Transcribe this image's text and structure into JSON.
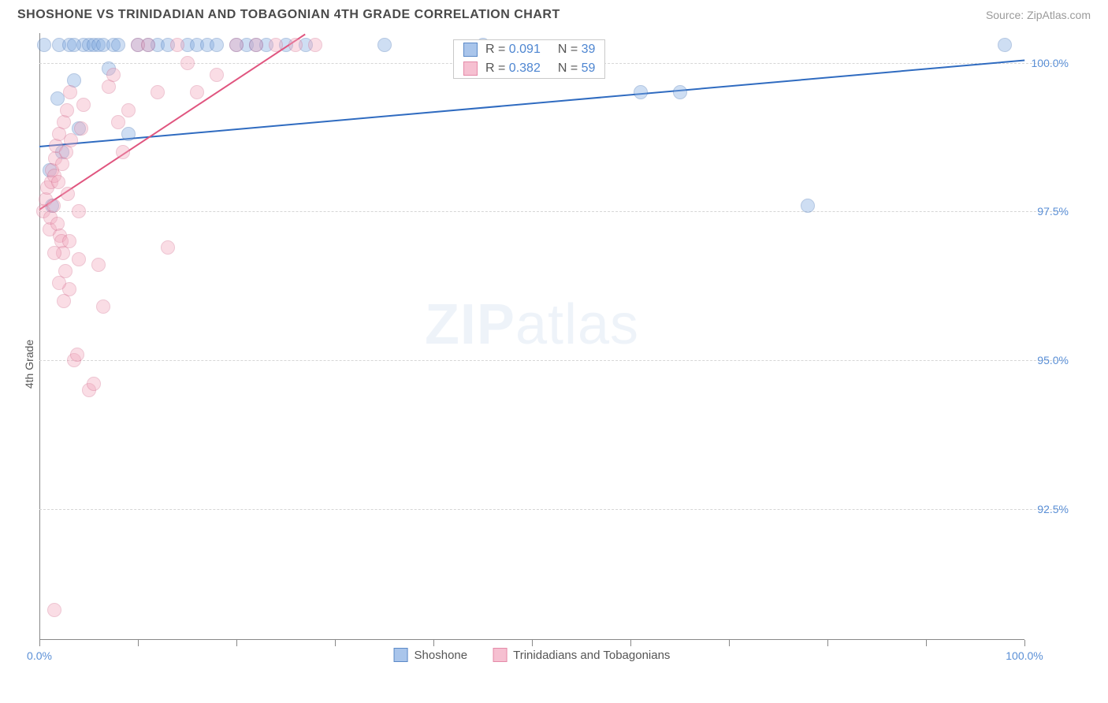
{
  "header": {
    "title": "SHOSHONE VS TRINIDADIAN AND TOBAGONIAN 4TH GRADE CORRELATION CHART",
    "source_prefix": "Source: ",
    "source_name": "ZipAtlas.com"
  },
  "watermark": {
    "zip": "ZIP",
    "atlas": "atlas"
  },
  "chart": {
    "type": "scatter",
    "y_axis_label": "4th Grade",
    "background_color": "#ffffff",
    "grid_color": "#d6d6d6",
    "axis_color": "#888888",
    "tick_label_color": "#5a8fd6",
    "xlim": [
      0,
      100
    ],
    "ylim": [
      90.3,
      100.5
    ],
    "x_ticks": [
      0,
      10,
      20,
      30,
      40,
      50,
      60,
      70,
      80,
      90,
      100
    ],
    "x_tick_labels": [
      {
        "x": 0,
        "label": "0.0%"
      },
      {
        "x": 100,
        "label": "100.0%"
      }
    ],
    "y_gridlines": [
      92.5,
      95.0,
      97.5,
      100.0
    ],
    "y_tick_labels": [
      {
        "y": 92.5,
        "label": "92.5%"
      },
      {
        "y": 95.0,
        "label": "95.0%"
      },
      {
        "y": 97.5,
        "label": "97.5%"
      },
      {
        "y": 100.0,
        "label": "100.0%"
      }
    ],
    "marker_radius": 9,
    "marker_opacity": 0.38,
    "series": [
      {
        "name": "Shoshone",
        "fill_color": "#7fa9e0",
        "stroke_color": "#3d6fb5",
        "legend_fill": "#a9c5eb",
        "legend_stroke": "#5b89c7",
        "trend": {
          "x1": 0,
          "y1": 98.6,
          "x2": 100,
          "y2": 100.05,
          "color": "#2f6bc0",
          "width": 2
        },
        "stats": {
          "R": "0.091",
          "N": "39"
        },
        "points": [
          [
            0.5,
            100.3
          ],
          [
            1.0,
            98.2
          ],
          [
            1.3,
            97.6
          ],
          [
            1.8,
            99.4
          ],
          [
            2.0,
            100.3
          ],
          [
            2.3,
            98.5
          ],
          [
            3.0,
            100.3
          ],
          [
            3.5,
            99.7
          ],
          [
            4.0,
            98.9
          ],
          [
            4.5,
            100.3
          ],
          [
            5.0,
            100.3
          ],
          [
            5.5,
            100.3
          ],
          [
            6.0,
            100.3
          ],
          [
            6.5,
            100.3
          ],
          [
            7.0,
            99.9
          ],
          [
            7.5,
            100.3
          ],
          [
            8.0,
            100.3
          ],
          [
            9.0,
            98.8
          ],
          [
            10.0,
            100.3
          ],
          [
            11.0,
            100.3
          ],
          [
            12.0,
            100.3
          ],
          [
            13.0,
            100.3
          ],
          [
            15.0,
            100.3
          ],
          [
            16.0,
            100.3
          ],
          [
            17.0,
            100.3
          ],
          [
            18.0,
            100.3
          ],
          [
            20.0,
            100.3
          ],
          [
            21.0,
            100.3
          ],
          [
            22.0,
            100.3
          ],
          [
            23.0,
            100.3
          ],
          [
            25.0,
            100.3
          ],
          [
            27.0,
            100.3
          ],
          [
            35.0,
            100.3
          ],
          [
            45.0,
            100.3
          ],
          [
            61.0,
            99.5
          ],
          [
            65.0,
            99.5
          ],
          [
            78.0,
            97.6
          ],
          [
            98.0,
            100.3
          ],
          [
            3.5,
            100.3
          ]
        ]
      },
      {
        "name": "Trinidadians and Tobagonians",
        "fill_color": "#f2a8bd",
        "stroke_color": "#d46a8c",
        "legend_fill": "#f6c0d1",
        "legend_stroke": "#e58aa8",
        "trend": {
          "x1": 0,
          "y1": 97.55,
          "x2": 27,
          "y2": 100.5,
          "color": "#e0557f",
          "width": 2
        },
        "stats": {
          "R": "0.382",
          "N": "59"
        },
        "points": [
          [
            0.4,
            97.5
          ],
          [
            0.6,
            97.7
          ],
          [
            0.8,
            97.9
          ],
          [
            1.0,
            97.2
          ],
          [
            1.1,
            97.4
          ],
          [
            1.2,
            98.0
          ],
          [
            1.3,
            98.2
          ],
          [
            1.4,
            97.6
          ],
          [
            1.5,
            98.1
          ],
          [
            1.6,
            98.4
          ],
          [
            1.7,
            98.6
          ],
          [
            1.8,
            97.3
          ],
          [
            1.9,
            98.0
          ],
          [
            2.0,
            98.8
          ],
          [
            2.1,
            97.1
          ],
          [
            2.2,
            97.0
          ],
          [
            2.3,
            98.3
          ],
          [
            2.4,
            96.8
          ],
          [
            2.5,
            99.0
          ],
          [
            2.6,
            96.5
          ],
          [
            2.7,
            98.5
          ],
          [
            2.8,
            99.2
          ],
          [
            2.9,
            97.8
          ],
          [
            3.0,
            96.2
          ],
          [
            3.1,
            99.5
          ],
          [
            3.2,
            98.7
          ],
          [
            3.5,
            95.0
          ],
          [
            3.8,
            95.1
          ],
          [
            4.0,
            96.7
          ],
          [
            4.2,
            98.9
          ],
          [
            4.5,
            99.3
          ],
          [
            5.0,
            94.5
          ],
          [
            5.5,
            94.6
          ],
          [
            6.0,
            96.6
          ],
          [
            6.5,
            95.9
          ],
          [
            7.0,
            99.6
          ],
          [
            7.5,
            99.8
          ],
          [
            8.0,
            99.0
          ],
          [
            8.5,
            98.5
          ],
          [
            9.0,
            99.2
          ],
          [
            10.0,
            100.3
          ],
          [
            11.0,
            100.3
          ],
          [
            12.0,
            99.5
          ],
          [
            13.0,
            96.9
          ],
          [
            14.0,
            100.3
          ],
          [
            15.0,
            100.0
          ],
          [
            16.0,
            99.5
          ],
          [
            18.0,
            99.8
          ],
          [
            20.0,
            100.3
          ],
          [
            22.0,
            100.3
          ],
          [
            24.0,
            100.3
          ],
          [
            26.0,
            100.3
          ],
          [
            28.0,
            100.3
          ],
          [
            2.0,
            96.3
          ],
          [
            3.0,
            97.0
          ],
          [
            1.5,
            96.8
          ],
          [
            2.5,
            96.0
          ],
          [
            4.0,
            97.5
          ],
          [
            1.5,
            90.8
          ]
        ]
      }
    ],
    "legend": {
      "items": [
        {
          "label": "Shoshone",
          "fill": "#a9c5eb",
          "stroke": "#5b89c7"
        },
        {
          "label": "Trinidadians and Tobagonians",
          "fill": "#f6c0d1",
          "stroke": "#e58aa8"
        }
      ]
    },
    "stats_box": {
      "left_pct": 42,
      "top_y": 100.4
    }
  }
}
